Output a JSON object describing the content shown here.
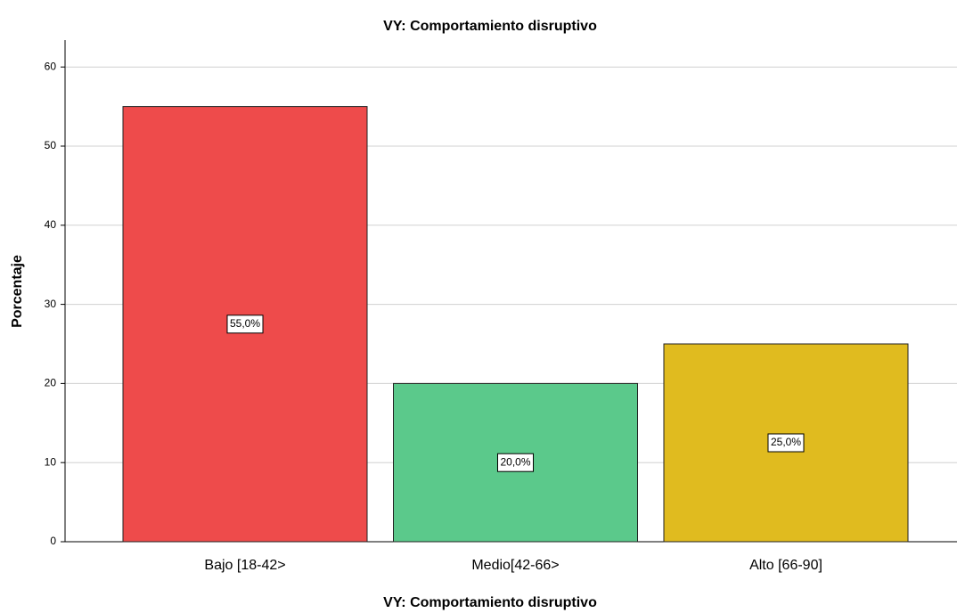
{
  "chart_data": {
    "type": "bar",
    "title": "VY: Comportamiento disruptivo",
    "x_label": "VY: Comportamiento disruptivo",
    "y_label": "Porcentaje",
    "categories": [
      "Bajo [18-42>",
      "Medio[42-66>",
      "Alto [66-90]"
    ],
    "values": [
      55,
      20,
      25
    ],
    "value_labels": [
      "55,0%",
      "20,0%",
      "25,0%"
    ],
    "colors": [
      "#ee4b4b",
      "#5bc98b",
      "#e0bb1f"
    ],
    "ylim": [
      0,
      63.4
    ],
    "yticks": [
      0,
      10,
      20,
      30,
      40,
      50,
      60
    ],
    "grid": true
  }
}
